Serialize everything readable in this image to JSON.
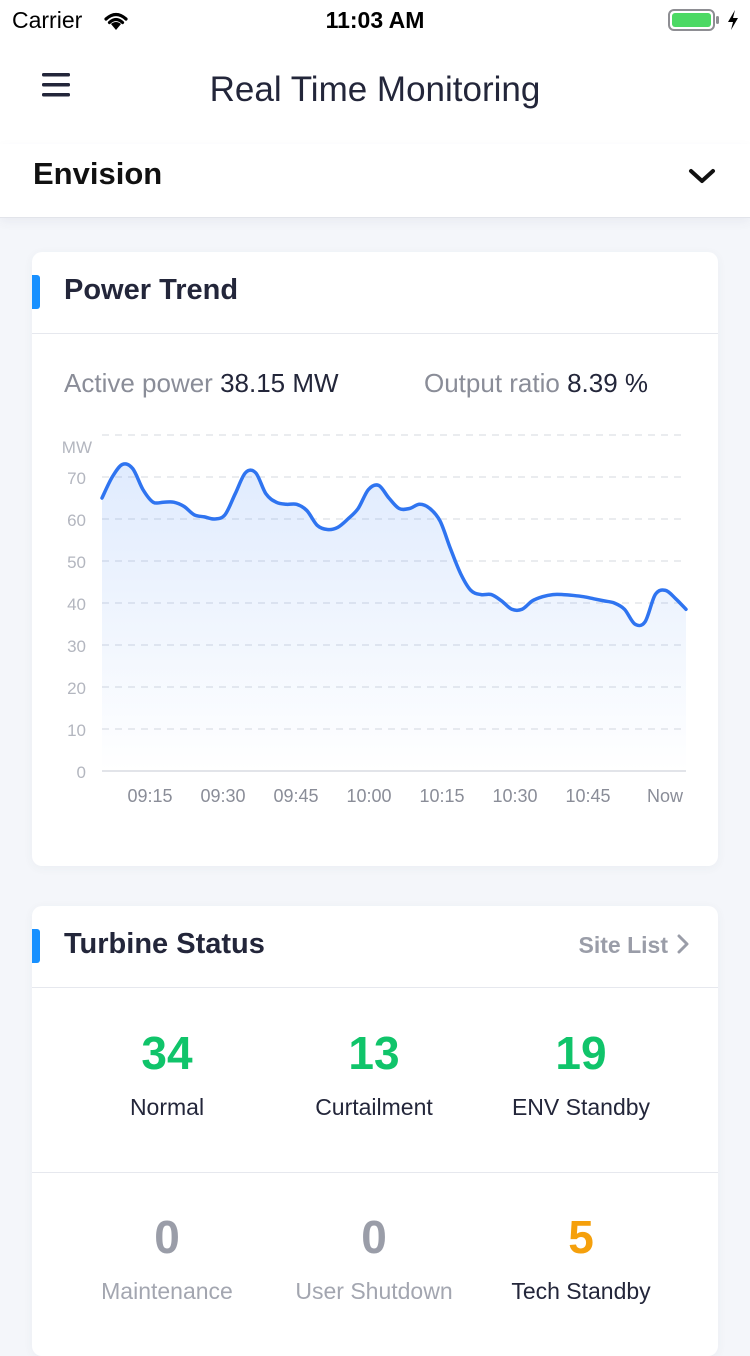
{
  "status_bar": {
    "carrier": "Carrier",
    "time": "11:03 AM",
    "battery_color": "#4cd964"
  },
  "nav": {
    "title": "Real Time Monitoring",
    "menu_icon": "hamburger-menu-icon"
  },
  "site": {
    "name": "Envision",
    "dropdown_icon": "chevron-down-icon"
  },
  "power_trend": {
    "title": "Power Trend",
    "active_power_label": "Active power",
    "active_power_value": "38.15 MW",
    "output_ratio_label": "Output ratio",
    "output_ratio_value": "8.39 %",
    "accent_color": "#1890ff"
  },
  "chart_data": {
    "type": "area",
    "title": "",
    "xlabel": "",
    "ylabel": "MW",
    "ylim": [
      0,
      80
    ],
    "y_ticks": [
      "70",
      "60",
      "50",
      "40",
      "30",
      "20",
      "10",
      "0"
    ],
    "x_tick_labels": [
      "09:15",
      "09:30",
      "09:45",
      "10:00",
      "10:15",
      "10:30",
      "10:45",
      "Now"
    ],
    "grid": true,
    "line_color": "#2f74f0",
    "series": [
      {
        "values": [
          [
            0,
            65
          ],
          [
            2,
            70
          ],
          [
            4,
            73
          ],
          [
            6,
            72
          ],
          [
            8,
            67
          ],
          [
            10,
            64
          ],
          [
            12,
            64
          ],
          [
            14,
            64
          ],
          [
            16,
            63
          ],
          [
            18,
            61
          ],
          [
            20,
            60.5
          ],
          [
            22,
            60
          ],
          [
            24,
            61
          ],
          [
            26,
            66
          ],
          [
            28,
            71
          ],
          [
            30,
            71
          ],
          [
            32,
            66
          ],
          [
            34,
            64
          ],
          [
            36,
            63.5
          ],
          [
            38,
            63.5
          ],
          [
            40,
            62
          ],
          [
            42,
            58.5
          ],
          [
            44,
            57.5
          ],
          [
            46,
            58
          ],
          [
            48,
            60
          ],
          [
            50,
            62.5
          ],
          [
            52,
            67
          ],
          [
            54,
            68
          ],
          [
            56,
            65
          ],
          [
            58,
            62.5
          ],
          [
            60,
            62.5
          ],
          [
            62,
            63.5
          ],
          [
            64,
            62.5
          ],
          [
            66,
            59.5
          ],
          [
            68,
            53
          ],
          [
            70,
            47
          ],
          [
            72,
            43
          ],
          [
            74,
            42
          ],
          [
            76,
            42
          ],
          [
            78,
            40.5
          ],
          [
            80,
            38.5
          ],
          [
            82,
            38.5
          ],
          [
            84,
            40.5
          ],
          [
            86,
            41.5
          ],
          [
            88,
            42
          ],
          [
            90,
            42
          ],
          [
            92,
            41.8
          ],
          [
            94,
            41.5
          ],
          [
            96,
            41
          ],
          [
            98,
            40.5
          ],
          [
            100,
            40
          ],
          [
            102,
            38.5
          ],
          [
            104,
            35
          ],
          [
            106,
            35.5
          ],
          [
            108,
            42
          ],
          [
            110,
            43
          ],
          [
            112,
            41
          ],
          [
            114,
            38.5
          ]
        ]
      }
    ]
  },
  "turbine_status": {
    "title": "Turbine Status",
    "site_list_label": "Site List",
    "items": [
      {
        "value": "34",
        "label": "Normal"
      },
      {
        "value": "13",
        "label": "Curtailment"
      },
      {
        "value": "19",
        "label": "ENV Standby"
      },
      {
        "value": "0",
        "label": "Maintenance"
      },
      {
        "value": "0",
        "label": "User Shutdown"
      },
      {
        "value": "5",
        "label": "Tech Standby"
      }
    ],
    "colors": {
      "normal": "#10c46a",
      "inactive": "#9a9da8",
      "warning": "#f5a00c"
    }
  }
}
